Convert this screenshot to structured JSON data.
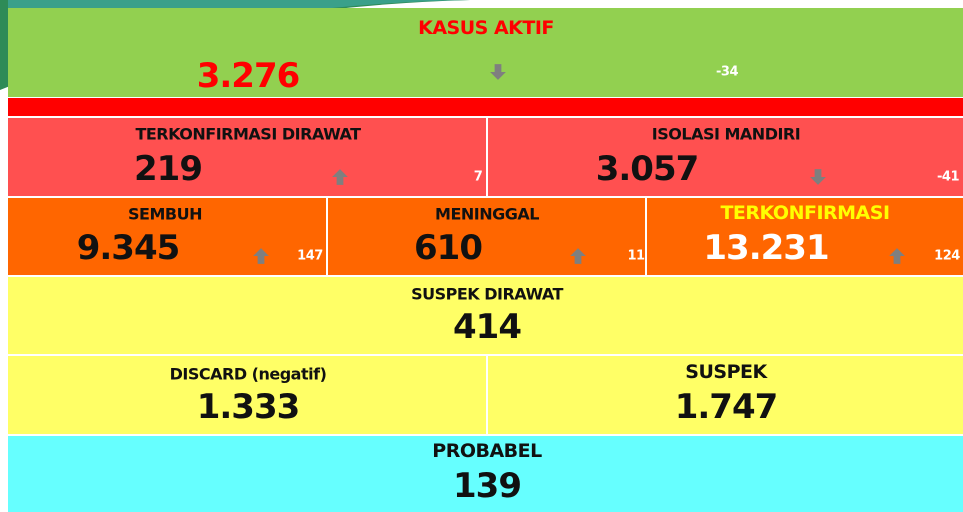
{
  "dashboard": {
    "active": {
      "label": "KASUS AKTIF",
      "value": "3.276",
      "change": "-34"
    },
    "treated": {
      "label": "TERKONFIRMASI DIRAWAT",
      "value": "219",
      "change": "7"
    },
    "isolation": {
      "label": "ISOLASI MANDIRI",
      "value": "3.057",
      "change": "-41"
    },
    "recovered": {
      "label": "SEMBUH",
      "value": "9.345",
      "change": "147"
    },
    "deaths": {
      "label": "MENINGGAL",
      "value": "610",
      "change": "11"
    },
    "confirmed": {
      "label": "TERKONFIRMASI",
      "value": "13.231",
      "change": "124"
    },
    "suspect_treated": {
      "label": "SUSPEK DIRAWAT",
      "value": "414"
    },
    "discard": {
      "label": "DISCARD (negatif)",
      "value": "1.333"
    },
    "suspect": {
      "label": "SUSPEK",
      "value": "1.747"
    },
    "probable": {
      "label": "PROBABEL",
      "value": "139"
    }
  }
}
